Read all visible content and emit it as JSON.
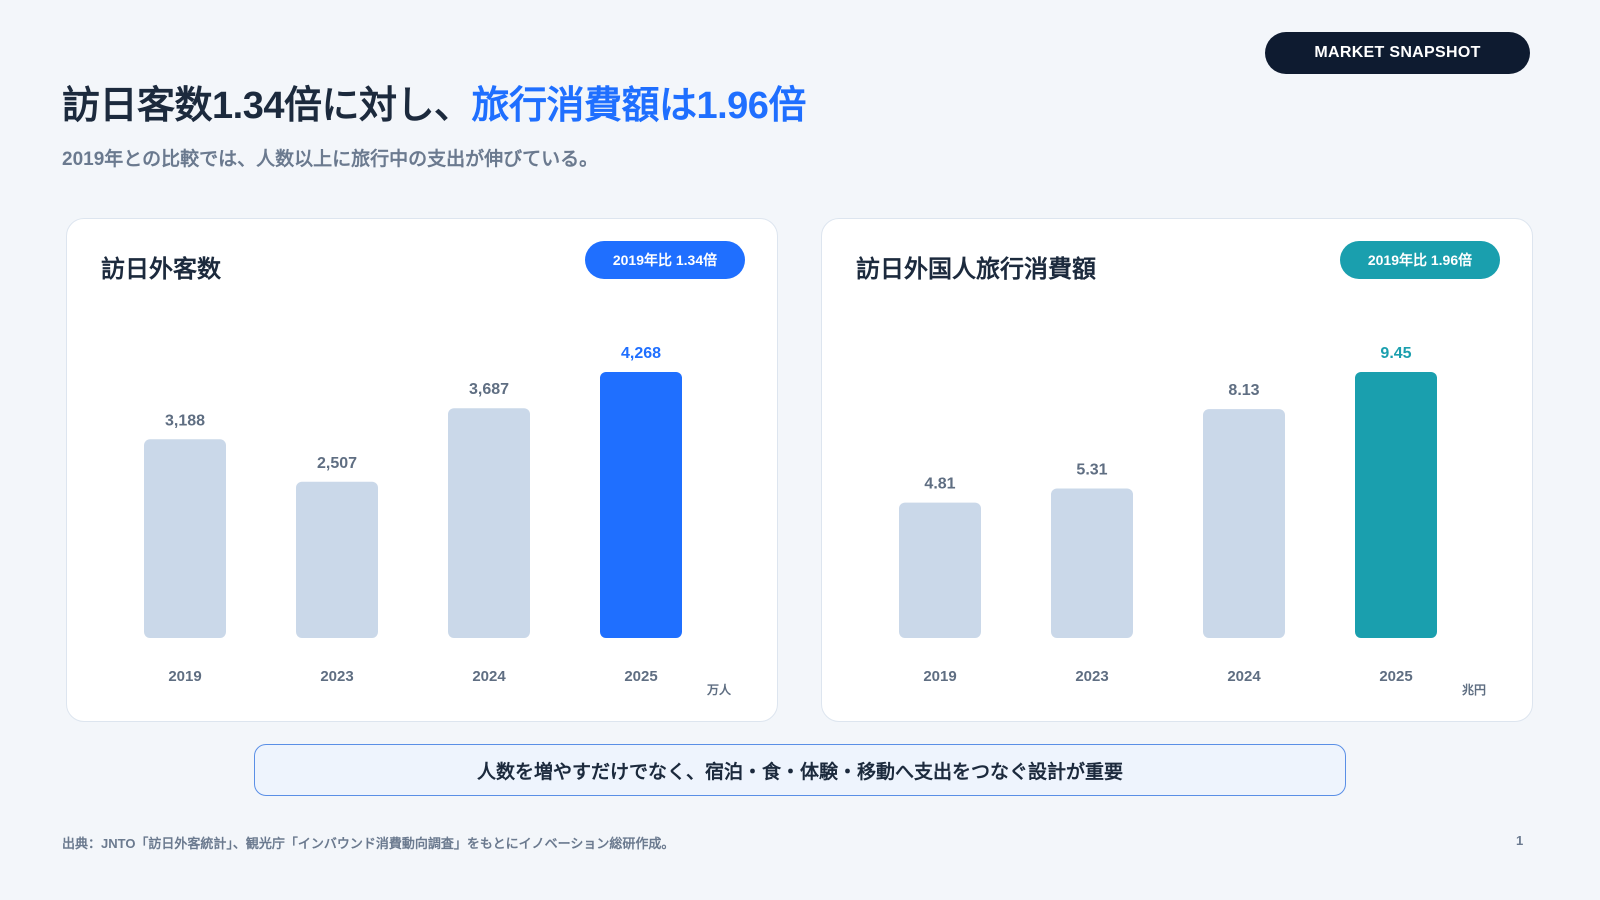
{
  "header": {
    "badge": "MARKET SNAPSHOT",
    "title_main": "訪日客数1.34倍に対し、",
    "title_highlight": "旅行消費額は1.96倍",
    "subtitle": "2019年との比較では、人数以上に旅行中の支出が伸びている。"
  },
  "colors": {
    "accent_blue": "#1f6fff",
    "accent_teal": "#1a9fae",
    "bar_muted": "#cad8e9",
    "dark": "#0e1b30"
  },
  "cards": [
    {
      "title": "訪日外客数",
      "pill": "2019年比 1.34倍"
    },
    {
      "title": "訪日外国人旅行消費額",
      "pill": "2019年比 1.96倍"
    }
  ],
  "chart_data": [
    {
      "type": "bar",
      "title": "訪日外客数",
      "categories": [
        "2019",
        "2023",
        "2024",
        "2025"
      ],
      "values": [
        3188,
        2507,
        3687,
        4268
      ],
      "value_labels": [
        "3,188",
        "2,507",
        "3,687",
        "4,268"
      ],
      "unit": "万人",
      "ylim": [
        0,
        4268
      ],
      "highlight_index": 3,
      "highlight_color": "#1f6fff",
      "bar_color": "#cad8e9",
      "grid": false
    },
    {
      "type": "bar",
      "title": "訪日外国人旅行消費額",
      "categories": [
        "2019",
        "2023",
        "2024",
        "2025"
      ],
      "values": [
        4.81,
        5.31,
        8.13,
        9.45
      ],
      "value_labels": [
        "4.81",
        "5.31",
        "8.13",
        "9.45"
      ],
      "unit": "兆円",
      "ylim": [
        0,
        9.45
      ],
      "highlight_index": 3,
      "highlight_color": "#1a9fae",
      "bar_color": "#cad8e9",
      "grid": false
    }
  ],
  "callout": "人数を増やすだけでなく、宿泊・食・体験・移動へ支出をつなぐ設計が重要",
  "footer": {
    "source": "出典：JNTO「訪日外客統計」、観光庁「インバウンド消費動向調査」をもとにイノベーション総研作成。",
    "page": "1"
  }
}
